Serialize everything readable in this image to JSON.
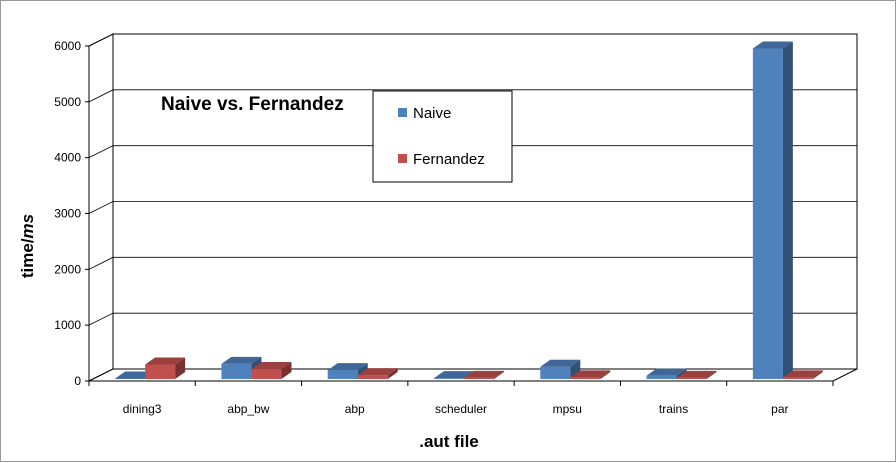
{
  "chart_data": {
    "type": "bar",
    "title": "Naive vs. Fernandez",
    "xlabel": ".aut file",
    "ylabel_prefix": "time/",
    "ylabel_unit": "ms",
    "ylim": [
      0,
      6000
    ],
    "yticks": [
      "0",
      "1000",
      "2000",
      "3000",
      "4000",
      "5000",
      "6000"
    ],
    "categories": [
      "dining3",
      "abp_bw",
      "abp",
      "scheduler",
      "mpsu",
      "trains",
      "par"
    ],
    "series": [
      {
        "name": "Naive",
        "color": "#4F81BD",
        "values": [
          10,
          270,
          160,
          15,
          220,
          60,
          5920
        ]
      },
      {
        "name": "Fernandez",
        "color": "#C0504D",
        "values": [
          260,
          180,
          70,
          20,
          30,
          20,
          30
        ]
      }
    ],
    "grid": true,
    "legend_position": "top-center"
  }
}
